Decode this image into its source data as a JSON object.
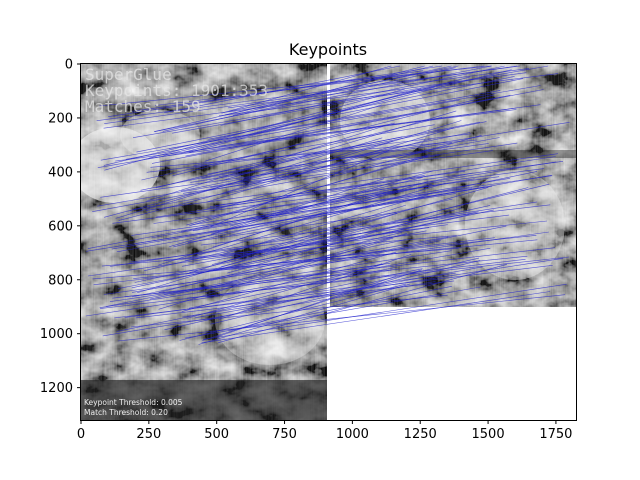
{
  "figure": {
    "title": "Keypoints",
    "x_ticks": [
      "0",
      "250",
      "500",
      "750",
      "1000",
      "1250",
      "1500",
      "1750"
    ],
    "y_ticks": [
      "0",
      "200",
      "400",
      "600",
      "800",
      "1000",
      "1200"
    ],
    "x_range": [
      0,
      1824
    ],
    "y_range": [
      1320,
      0
    ]
  },
  "overlay": {
    "line1": "SuperGlue",
    "line2": "Keypoints: 1901:353",
    "line3": "Matches: 159",
    "footer1": "Keypoint Threshold: 0.005",
    "footer2": "Match Threshold: 0.20"
  },
  "colors": {
    "match_line": "#2222cc",
    "separator": "#ffffff"
  }
}
